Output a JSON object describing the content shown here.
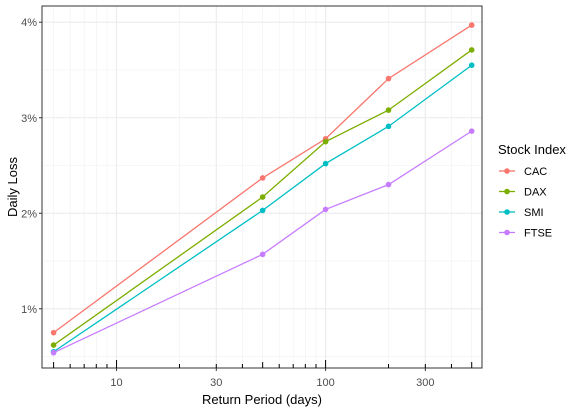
{
  "chart_data": {
    "type": "line",
    "xlabel": "Return Period (days)",
    "ylabel": "Daily Loss",
    "x_scale": "log",
    "xlim": [
      4.4,
      560
    ],
    "ylim": [
      0.0038,
      0.0417
    ],
    "x_ticks": [
      {
        "value": 10,
        "label": "10"
      },
      {
        "value": 30,
        "label": "30"
      },
      {
        "value": 100,
        "label": "100"
      },
      {
        "value": 300,
        "label": "300"
      }
    ],
    "x_minor_ticks": [
      5,
      6,
      7,
      8,
      9,
      20,
      40,
      50,
      60,
      70,
      80,
      90,
      200,
      400,
      500
    ],
    "y_ticks": [
      {
        "value": 0.01,
        "label": "1%"
      },
      {
        "value": 0.02,
        "label": "2%"
      },
      {
        "value": 0.03,
        "label": "3%"
      },
      {
        "value": 0.04,
        "label": "4%"
      }
    ],
    "grid": true,
    "legend": {
      "title": "Stock Index",
      "position": "right"
    },
    "x": [
      5,
      50,
      100,
      200,
      500
    ],
    "series": [
      {
        "name": "CAC",
        "color": "#F8766D",
        "values": [
          0.0075,
          0.0237,
          0.0278,
          0.0341,
          0.0397
        ]
      },
      {
        "name": "DAX",
        "color": "#7CAE00",
        "values": [
          0.0062,
          0.0217,
          0.0275,
          0.0308,
          0.0371
        ]
      },
      {
        "name": "SMI",
        "color": "#00BFC4",
        "values": [
          0.0055,
          0.0203,
          0.0252,
          0.0291,
          0.0355
        ]
      },
      {
        "name": "FTSE",
        "color": "#C77CFF",
        "values": [
          0.0054,
          0.0157,
          0.0204,
          0.023,
          0.0286
        ]
      }
    ]
  }
}
